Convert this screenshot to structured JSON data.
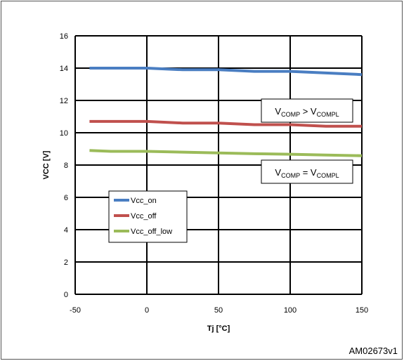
{
  "chart_data": {
    "type": "line",
    "title": "",
    "xlabel": "Tj [°C]",
    "ylabel": "VCC [V]",
    "xlim": [
      -50,
      150
    ],
    "ylim": [
      0,
      16
    ],
    "x_ticks": [
      -50,
      0,
      50,
      100,
      150
    ],
    "y_ticks": [
      0,
      2,
      4,
      6,
      8,
      10,
      12,
      14,
      16
    ],
    "grid": true,
    "legend_position": "left",
    "series": [
      {
        "name": "Vcc_on",
        "color": "#4a7ec2",
        "x": [
          -40,
          0,
          25,
          50,
          75,
          100,
          125,
          150
        ],
        "y": [
          14.0,
          14.0,
          13.9,
          13.9,
          13.8,
          13.8,
          13.7,
          13.6
        ]
      },
      {
        "name": "Vcc_off",
        "color": "#c0504d",
        "x": [
          -40,
          0,
          25,
          50,
          75,
          100,
          125,
          150
        ],
        "y": [
          10.7,
          10.7,
          10.6,
          10.6,
          10.5,
          10.5,
          10.4,
          10.4
        ]
      },
      {
        "name": "Vcc_off_low",
        "color": "#9bbb59",
        "x": [
          -40,
          -25,
          0,
          25,
          50,
          75,
          100,
          125,
          150
        ],
        "y": [
          8.9,
          8.85,
          8.85,
          8.8,
          8.75,
          8.7,
          8.67,
          8.62,
          8.58
        ]
      }
    ],
    "annotations": [
      {
        "main1": "V",
        "sub1": "COMP",
        "op": " > ",
        "main2": "V",
        "sub2": "COMPL"
      },
      {
        "main1": "V",
        "sub1": "COMP",
        "op": " = ",
        "main2": "V",
        "sub2": "COMPL"
      }
    ]
  },
  "figure_id": "AM02673v1"
}
